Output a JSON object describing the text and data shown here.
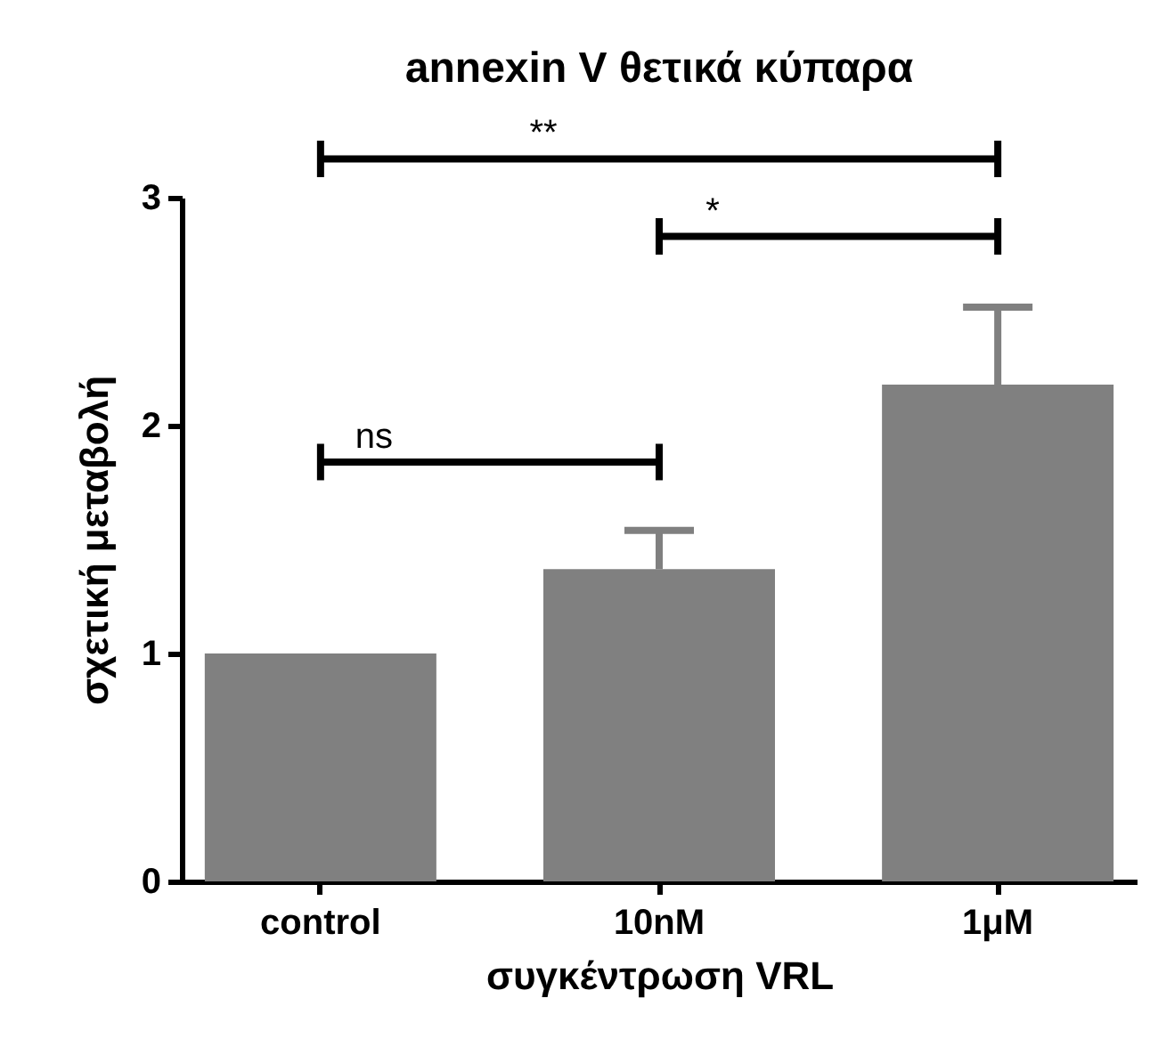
{
  "chart_data": {
    "type": "bar",
    "title": "annexin V θετικά κύπαρα",
    "xlabel": "συγκέντρωση VRL",
    "ylabel": "σχετική μεταβολή",
    "categories": [
      "control",
      "10nM",
      "1μM"
    ],
    "values": [
      1.0,
      1.37,
      2.18
    ],
    "color": "#808080",
    "errors": [
      null,
      [
        1.37,
        1.54
      ],
      [
        2.18,
        2.52
      ]
    ],
    "ylim": [
      0,
      3
    ],
    "yticks": [
      0,
      1,
      2,
      3
    ],
    "grid": false,
    "annotations": [
      "ns",
      "*",
      "**"
    ]
  }
}
